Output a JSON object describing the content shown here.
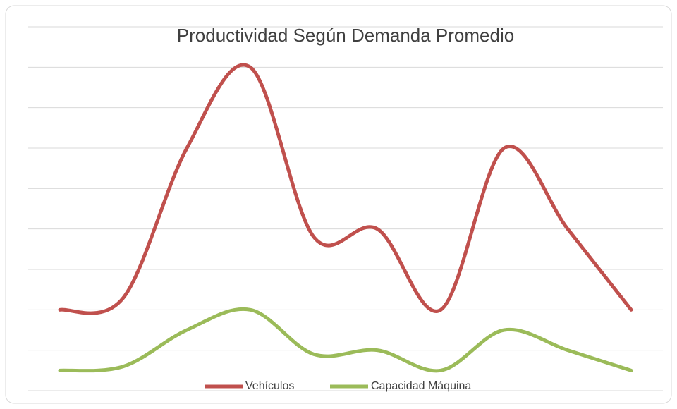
{
  "chart_data": {
    "type": "line",
    "title": "Productividad Según Demanda Promedio",
    "categories": [
      null,
      null,
      null,
      null,
      null,
      null,
      null,
      null,
      null,
      null
    ],
    "series": [
      {
        "name": "Vehículos",
        "color": "#c0504d",
        "values": [
          2,
          2.3,
          6,
          8,
          3.8,
          4,
          2,
          6,
          4,
          2
        ]
      },
      {
        "name": "Capacidad Máquina",
        "color": "#9bbb59",
        "values": [
          0.5,
          0.6,
          1.5,
          2,
          0.9,
          1,
          0.5,
          1.5,
          1,
          0.5
        ]
      }
    ],
    "ylim": [
      0,
      9
    ],
    "yticks": [
      0,
      1,
      2,
      3,
      4,
      5,
      6,
      7,
      8,
      9
    ],
    "grid": true,
    "legend": "bottom"
  }
}
